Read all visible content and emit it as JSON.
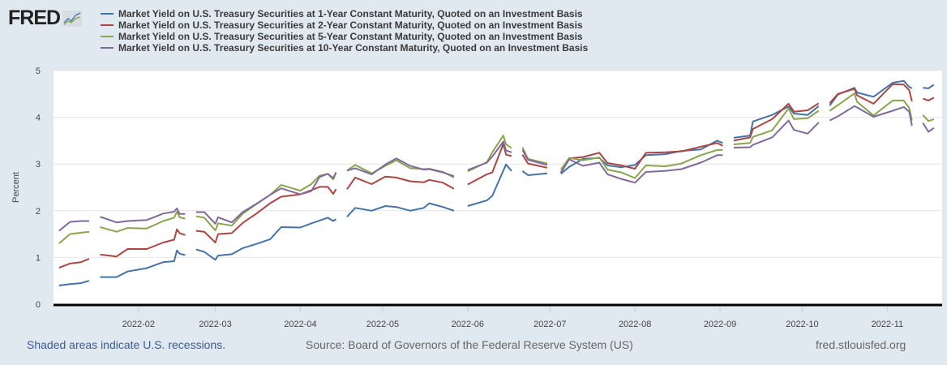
{
  "header": {
    "logo_text": "FRED"
  },
  "chart_data": {
    "type": "line",
    "title": "",
    "xlabel": "",
    "ylabel": "Percent",
    "ylim": [
      0,
      5
    ],
    "xlim": [
      "2022-01-01",
      "2022-11-21"
    ],
    "yticks": [
      "0",
      "1",
      "2",
      "3",
      "4",
      "5"
    ],
    "xticks": [
      "2022-02",
      "2022-03",
      "2022-04",
      "2022-05",
      "2022-06",
      "2022-07",
      "2022-08",
      "2022-09",
      "2022-10",
      "2022-11"
    ],
    "grid": true,
    "legend_placement": "top",
    "series": [
      {
        "name": "Market Yield on U.S. Treasury Securities at 1-Year Constant Maturity, Quoted on an Investment Basis",
        "color": "#4572a7"
      },
      {
        "name": "Market Yield on U.S. Treasury Securities at 2-Year Constant Maturity, Quoted on an Investment Basis",
        "color": "#aa4643"
      },
      {
        "name": "Market Yield on U.S. Treasury Securities at 5-Year Constant Maturity, Quoted on an Investment Basis",
        "color": "#89a54e"
      },
      {
        "name": "Market Yield on U.S. Treasury Securities at 10-Year Constant Maturity, Quoted on an Investment Basis",
        "color": "#80699b"
      }
    ],
    "points": [
      [
        "2022-01-03",
        0.4,
        0.78,
        1.3,
        1.57
      ],
      [
        "2022-01-07",
        0.43,
        0.87,
        1.5,
        1.76
      ],
      [
        "2022-01-11",
        0.45,
        0.9,
        1.53,
        1.78
      ],
      [
        "2022-01-14",
        0.5,
        0.97,
        1.55,
        1.78
      ],
      null,
      [
        "2022-01-18",
        0.58,
        1.06,
        1.65,
        1.87
      ],
      [
        "2022-01-24",
        0.58,
        1.02,
        1.55,
        1.75
      ],
      [
        "2022-01-28",
        0.7,
        1.18,
        1.63,
        1.78
      ],
      [
        "2022-02-04",
        0.77,
        1.18,
        1.62,
        1.8
      ],
      [
        "2022-02-10",
        0.9,
        1.32,
        1.78,
        1.94
      ],
      [
        "2022-02-14",
        0.92,
        1.38,
        1.85,
        1.98
      ],
      [
        "2022-02-15",
        1.15,
        1.6,
        1.98,
        2.05
      ],
      [
        "2022-02-16",
        1.08,
        1.52,
        1.86,
        1.93
      ],
      [
        "2022-02-18",
        1.05,
        1.48,
        1.83,
        1.93
      ],
      null,
      [
        "2022-02-22",
        1.17,
        1.57,
        1.88,
        1.97
      ],
      [
        "2022-02-25",
        1.12,
        1.55,
        1.85,
        1.97
      ],
      [
        "2022-03-01",
        0.95,
        1.32,
        1.58,
        1.72
      ],
      [
        "2022-03-02",
        1.04,
        1.5,
        1.73,
        1.86
      ],
      [
        "2022-03-07",
        1.07,
        1.52,
        1.68,
        1.75
      ],
      [
        "2022-03-11",
        1.2,
        1.74,
        1.94,
        1.97
      ],
      [
        "2022-03-16",
        1.29,
        1.94,
        2.14,
        2.15
      ],
      [
        "2022-03-21",
        1.39,
        2.16,
        2.34,
        2.34
      ],
      [
        "2022-03-25",
        1.65,
        2.3,
        2.55,
        2.48
      ],
      [
        "2022-04-01",
        1.64,
        2.35,
        2.43,
        2.35
      ],
      [
        "2022-04-05",
        1.73,
        2.44,
        2.57,
        2.42
      ],
      [
        "2022-04-08",
        1.79,
        2.51,
        2.75,
        2.72
      ],
      [
        "2022-04-11",
        1.85,
        2.51,
        2.79,
        2.79
      ],
      [
        "2022-04-13",
        1.78,
        2.36,
        2.67,
        2.7
      ],
      [
        "2022-04-14",
        1.82,
        2.46,
        2.82,
        2.82
      ],
      null,
      [
        "2022-04-18",
        1.87,
        2.46,
        2.86,
        2.86
      ],
      [
        "2022-04-21",
        2.06,
        2.71,
        2.98,
        2.91
      ],
      [
        "2022-04-27",
        2.0,
        2.57,
        2.8,
        2.78
      ],
      [
        "2022-05-02",
        2.1,
        2.73,
        2.96,
        2.99
      ],
      [
        "2022-05-06",
        2.08,
        2.71,
        3.08,
        3.12
      ],
      [
        "2022-05-11",
        2.0,
        2.63,
        2.91,
        2.96
      ],
      [
        "2022-05-16",
        2.06,
        2.61,
        2.89,
        2.88
      ],
      [
        "2022-05-18",
        2.16,
        2.66,
        2.9,
        2.89
      ],
      [
        "2022-05-23",
        2.08,
        2.6,
        2.83,
        2.82
      ],
      [
        "2022-05-27",
        2.0,
        2.47,
        2.71,
        2.74
      ],
      null,
      [
        "2022-06-01",
        2.1,
        2.56,
        2.84,
        2.87
      ],
      [
        "2022-06-08",
        2.22,
        2.78,
        3.04,
        3.03
      ],
      [
        "2022-06-10",
        2.32,
        2.82,
        3.25,
        3.16
      ],
      [
        "2022-06-14",
        2.86,
        3.43,
        3.61,
        3.48
      ],
      [
        "2022-06-15",
        2.99,
        3.2,
        3.42,
        3.29
      ],
      [
        "2022-06-17",
        2.85,
        3.17,
        3.34,
        3.25
      ],
      null,
      [
        "2022-06-21",
        2.85,
        3.2,
        3.36,
        3.3
      ],
      [
        "2022-06-23",
        2.76,
        3.01,
        3.11,
        3.09
      ],
      [
        "2022-06-30",
        2.8,
        2.92,
        3.01,
        2.98
      ],
      null,
      [
        "2022-07-05",
        2.79,
        2.82,
        2.88,
        2.81
      ],
      [
        "2022-07-08",
        2.94,
        3.12,
        3.13,
        3.1
      ],
      [
        "2022-07-13",
        3.11,
        3.15,
        3.08,
        2.96
      ],
      [
        "2022-07-19",
        3.13,
        3.24,
        3.14,
        3.03
      ],
      [
        "2022-07-22",
        2.97,
        3.02,
        2.88,
        2.78
      ],
      [
        "2022-07-27",
        2.93,
        2.97,
        2.82,
        2.68
      ],
      [
        "2022-08-01",
        2.98,
        2.9,
        2.7,
        2.6
      ],
      [
        "2022-08-05",
        3.19,
        3.24,
        2.97,
        2.83
      ],
      [
        "2022-08-12",
        3.21,
        3.25,
        2.95,
        2.85
      ],
      [
        "2022-08-18",
        3.28,
        3.27,
        3.01,
        2.89
      ],
      [
        "2022-08-25",
        3.31,
        3.37,
        3.19,
        3.03
      ],
      [
        "2022-08-31",
        3.5,
        3.45,
        3.3,
        3.19
      ],
      [
        "2022-09-02",
        3.45,
        3.39,
        3.3,
        3.19
      ],
      null,
      [
        "2022-09-06",
        3.56,
        3.5,
        3.42,
        3.35
      ],
      [
        "2022-09-12",
        3.61,
        3.57,
        3.45,
        3.36
      ],
      [
        "2022-09-13",
        3.91,
        3.75,
        3.58,
        3.41
      ],
      [
        "2022-09-20",
        4.05,
        3.96,
        3.72,
        3.57
      ],
      [
        "2022-09-26",
        4.23,
        4.29,
        4.19,
        3.93
      ],
      [
        "2022-09-28",
        4.08,
        4.12,
        3.96,
        3.73
      ],
      [
        "2022-10-03",
        4.05,
        4.15,
        3.98,
        3.65
      ],
      [
        "2022-10-07",
        4.24,
        4.3,
        4.14,
        3.89
      ],
      null,
      [
        "2022-10-11",
        4.25,
        4.3,
        4.14,
        3.93
      ],
      [
        "2022-10-14",
        4.49,
        4.5,
        4.26,
        4.02
      ],
      [
        "2022-10-20",
        4.63,
        4.61,
        4.51,
        4.24
      ],
      [
        "2022-10-21",
        4.53,
        4.47,
        4.33,
        4.21
      ],
      [
        "2022-10-27",
        4.44,
        4.29,
        4.04,
        4.01
      ],
      [
        "2022-11-03",
        4.74,
        4.71,
        4.36,
        4.14
      ],
      [
        "2022-11-07",
        4.78,
        4.7,
        4.36,
        4.22
      ],
      [
        "2022-11-09",
        4.65,
        4.58,
        4.2,
        4.12
      ],
      [
        "2022-11-10",
        4.62,
        4.34,
        3.93,
        3.82
      ],
      null,
      [
        "2022-11-14",
        4.63,
        4.4,
        4.05,
        3.88
      ],
      [
        "2022-11-16",
        4.62,
        4.36,
        3.92,
        3.69
      ],
      [
        "2022-11-18",
        4.7,
        4.42,
        3.96,
        3.77
      ]
    ]
  },
  "footer": {
    "recession_note": "Shaded areas indicate U.S. recessions.",
    "source": "Source: Board of Governors of the Federal Reserve System (US)",
    "site": "fred.stlouisfed.org"
  }
}
